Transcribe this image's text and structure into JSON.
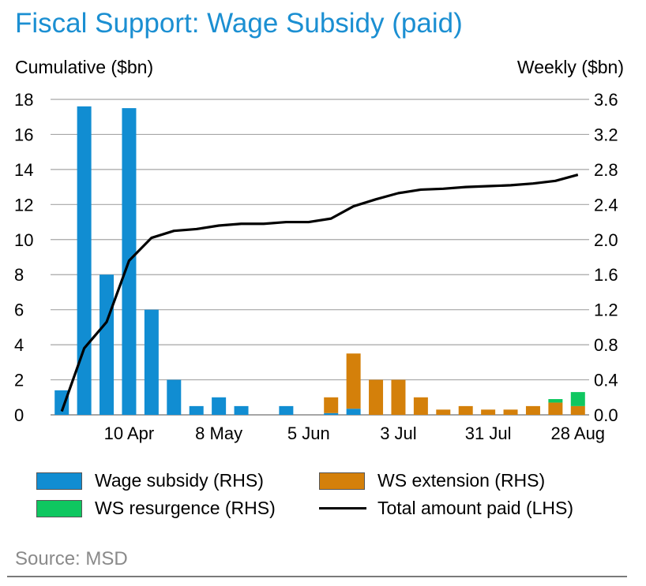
{
  "chart_data": {
    "type": "bar",
    "title": "Fiscal Support: Wage Subsidy (paid)",
    "ylabel_left": "Cumulative ($bn)",
    "ylabel_right": "Weekly ($bn)",
    "ylim_left": [
      0,
      18
    ],
    "ylim_right": [
      0,
      3.6
    ],
    "yticks_left": [
      "0",
      "2",
      "4",
      "6",
      "8",
      "10",
      "12",
      "14",
      "16",
      "18"
    ],
    "yticks_right": [
      "0.0",
      "0.4",
      "0.8",
      "1.2",
      "1.6",
      "2.0",
      "2.4",
      "2.8",
      "3.2",
      "3.6"
    ],
    "xtick_labels": [
      {
        "index": 3,
        "label": "10 Apr"
      },
      {
        "index": 7,
        "label": "8 May"
      },
      {
        "index": 11,
        "label": "5 Jun"
      },
      {
        "index": 15,
        "label": "3 Jul"
      },
      {
        "index": 19,
        "label": "31 Jul"
      },
      {
        "index": 23,
        "label": "28 Aug"
      }
    ],
    "n_weeks": 24,
    "grid": true,
    "legend_position": "bottom",
    "series": [
      {
        "name": "Wage subsidy (RHS)",
        "kind": "bar",
        "axis": "right",
        "color": "#118dd2",
        "values": [
          0.28,
          3.52,
          1.6,
          3.5,
          1.2,
          0.4,
          0.1,
          0.2,
          0.1,
          0,
          0.1,
          0,
          0.02,
          0.07,
          0,
          0,
          0,
          0,
          0,
          0,
          0,
          0,
          0,
          0
        ]
      },
      {
        "name": "WS extension (RHS)",
        "kind": "bar",
        "axis": "right",
        "color": "#d4800a",
        "values": [
          0,
          0,
          0,
          0,
          0,
          0,
          0,
          0,
          0,
          0,
          0,
          0,
          0.18,
          0.63,
          0.4,
          0.4,
          0.2,
          0.06,
          0.1,
          0.06,
          0.06,
          0.1,
          0.14,
          0.1
        ]
      },
      {
        "name": "WS resurgence (RHS)",
        "kind": "bar",
        "axis": "right",
        "color": "#0fc760",
        "values": [
          0,
          0,
          0,
          0,
          0,
          0,
          0,
          0,
          0,
          0,
          0,
          0,
          0,
          0,
          0,
          0,
          0,
          0,
          0,
          0,
          0,
          0,
          0.04,
          0.16
        ]
      },
      {
        "name": "Total amount paid (LHS)",
        "kind": "line",
        "axis": "left",
        "color": "#000000",
        "values": [
          0.2,
          3.8,
          5.3,
          8.8,
          10.1,
          10.5,
          10.6,
          10.8,
          10.9,
          10.9,
          11.0,
          11.0,
          11.2,
          11.9,
          12.3,
          12.65,
          12.85,
          12.9,
          13.0,
          13.05,
          13.1,
          13.2,
          13.35,
          13.7
        ]
      }
    ]
  },
  "legend": {
    "items": [
      "Wage subsidy (RHS)",
      "WS extension (RHS)",
      "WS resurgence (RHS)",
      "Total amount paid (LHS)"
    ]
  },
  "source": "Source: MSD"
}
